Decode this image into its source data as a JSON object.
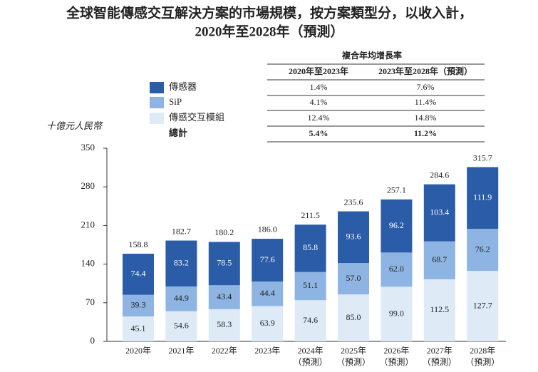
{
  "chart_data": {
    "type": "stacked-bar",
    "title": "全球智能傳感交互解決方案的市場規模，按方案類型分，以收入計，",
    "subtitle": "2020年至2028年（預測）",
    "y_label": "十億元人民幣",
    "categories": [
      "2020年",
      "2021年",
      "2022年",
      "2023年",
      "2024年",
      "2025年",
      "2026年",
      "2027年",
      "2028年"
    ],
    "category_notes": [
      null,
      null,
      null,
      null,
      "（預測）",
      "（預測）",
      "（預測）",
      "（預測）",
      "（預測）"
    ],
    "series": [
      {
        "name": "傳感交互模組",
        "color": "#deebf7",
        "label_color": "#222222",
        "values": [
          45.1,
          54.6,
          58.3,
          63.9,
          74.6,
          85.0,
          99.0,
          112.5,
          127.7
        ],
        "value_labels": [
          "45.1",
          "54.6",
          "58.3",
          "63.9",
          "74.6",
          "85.0",
          "99.0",
          "112.5",
          "127.7"
        ],
        "cagr": [
          "12.4%",
          "14.8%"
        ]
      },
      {
        "name": "SiP",
        "color": "#8db4e2",
        "label_color": "#222222",
        "values": [
          39.3,
          44.9,
          43.4,
          44.4,
          51.1,
          57.0,
          62.0,
          68.7,
          76.2
        ],
        "value_labels": [
          "39.3",
          "44.9",
          "43.4",
          "44.4",
          "51.1",
          "57.0",
          "62.0",
          "68.7",
          "76.2"
        ],
        "cagr": [
          "4.1%",
          "11.4%"
        ]
      },
      {
        "name": "傳感器",
        "color": "#2a5ca8",
        "label_color": "#ffffff",
        "values": [
          74.4,
          83.2,
          78.5,
          77.6,
          85.8,
          93.6,
          96.2,
          103.4,
          111.9
        ],
        "value_labels": [
          "74.4",
          "83.2",
          "78.5",
          "77.6",
          "85.8",
          "93.6",
          "96.2",
          "103.4",
          "111.9"
        ],
        "cagr": [
          "1.4%",
          "7.6%"
        ]
      }
    ],
    "totals": [
      158.8,
      182.7,
      180.2,
      186.0,
      211.5,
      235.6,
      257.1,
      284.6,
      315.7
    ],
    "total_labels": [
      "158.8",
      "182.7",
      "180.2",
      "186.0",
      "211.5",
      "235.6",
      "257.1",
      "284.6",
      "315.7"
    ],
    "cagr_title": "複合年均增長率",
    "cagr_columns": [
      "2020年至2023年",
      "2023年至2028年（預測）"
    ],
    "total_name": "總計",
    "total_cagr": [
      "5.4%",
      "11.2%"
    ],
    "ylim": [
      0,
      350
    ],
    "yticks": [
      0,
      70,
      140,
      210,
      280,
      350
    ]
  }
}
